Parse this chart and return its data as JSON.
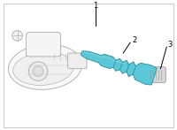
{
  "background_color": "#ffffff",
  "border_color": "#cccccc",
  "part1_color": "#f2f2f2",
  "part1_outline": "#aaaaaa",
  "part2_color": "#5bc8d8",
  "part2_outline": "#2a8a9a",
  "part3_color": "#d8d8d8",
  "part3_outline": "#999999",
  "label1": "1",
  "label2": "2",
  "label3": "3",
  "figsize": [
    2.0,
    1.47
  ],
  "dpi": 100
}
